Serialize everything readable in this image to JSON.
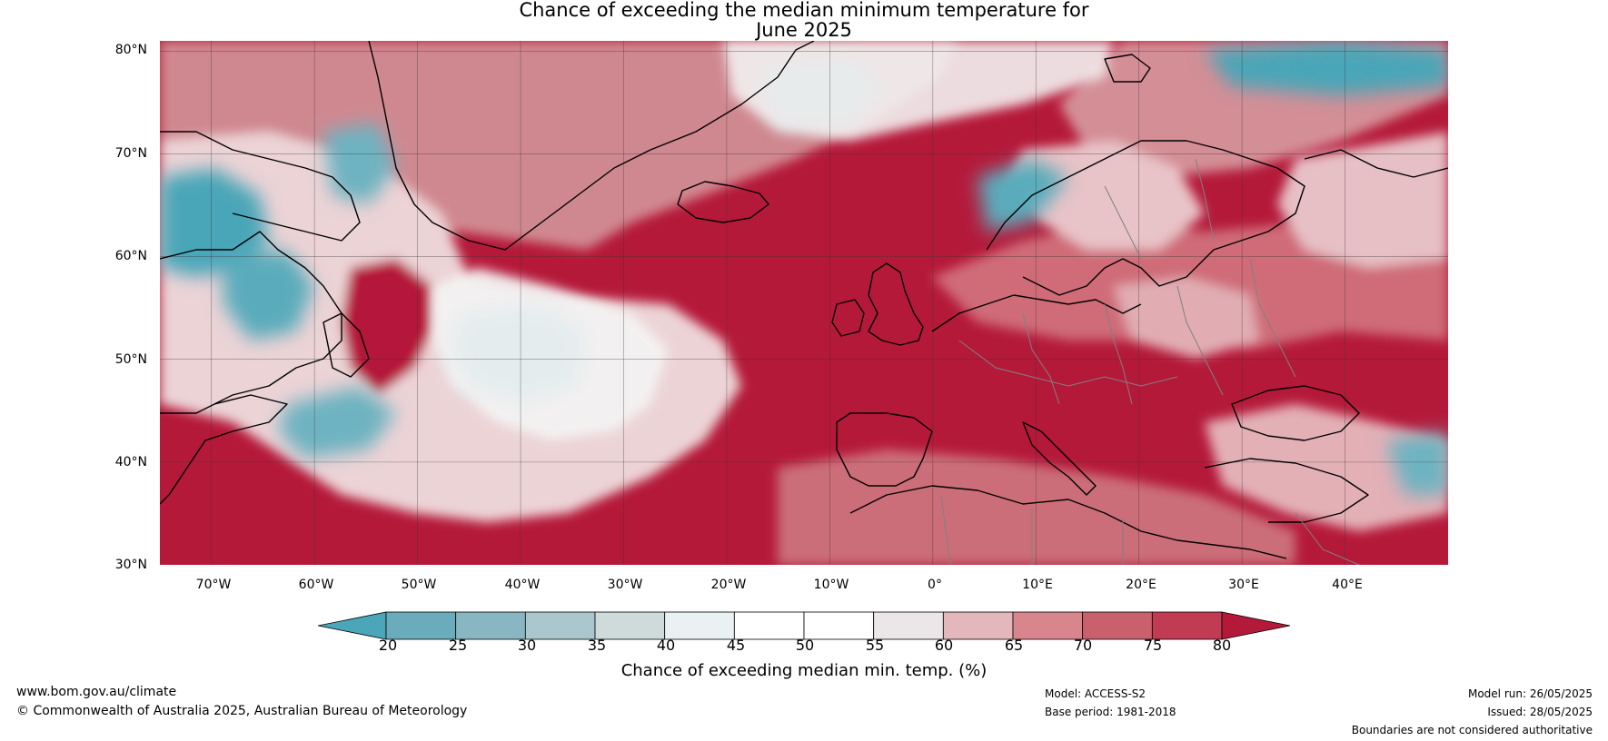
{
  "title": {
    "line1": "Chance of exceeding the median minimum temperature for",
    "line2": "June 2025"
  },
  "map": {
    "lat_labels": [
      "80°N",
      "70°N",
      "60°N",
      "50°N",
      "40°N",
      "30°N"
    ],
    "lon_labels": [
      "70°W",
      "60°W",
      "50°W",
      "40°W",
      "30°W",
      "20°W",
      "10°W",
      "0°",
      "10°E",
      "20°E",
      "30°E",
      "40°E"
    ],
    "lat_range": [
      30,
      81
    ],
    "lon_range": [
      -75,
      50
    ],
    "colors": {
      "high": "#b5193a",
      "mid_high": "#c9606c",
      "light_high": "#d98f97",
      "pale_high": "#e9bfc4",
      "neutral": "#f4f4f4",
      "pale_low": "#d6e6ea",
      "light_low": "#8fbac5",
      "low": "#4aa6b8",
      "land_outline": "#000000",
      "borders": "#808080",
      "grid": "#555555"
    }
  },
  "colorbar": {
    "ticks": [
      "20",
      "25",
      "30",
      "35",
      "40",
      "45",
      "50",
      "55",
      "60",
      "65",
      "70",
      "75",
      "80"
    ],
    "colors": [
      "#4aa6b8",
      "#6aacbc",
      "#88b7c3",
      "#aac7cd",
      "#cfdadb",
      "#e9f1f2",
      "#ffffff",
      "#ffffff",
      "#ebe6e7",
      "#e4b7bc",
      "#d9858e",
      "#c9606c",
      "#c13c52",
      "#b5193a"
    ],
    "label": "Chance of exceeding median min. temp. (%)"
  },
  "footer": {
    "website": "www.bom.gov.au/climate",
    "copyright": "© Commonwealth of Australia 2025, Australian Bureau of Meteorology",
    "model": "Model: ACCESS-S2",
    "base_period": "Base period: 1981-2018",
    "model_run": "Model run: 26/05/2025",
    "issued": "Issued: 28/05/2025",
    "disclaimer": "Boundaries are not considered authoritative"
  }
}
